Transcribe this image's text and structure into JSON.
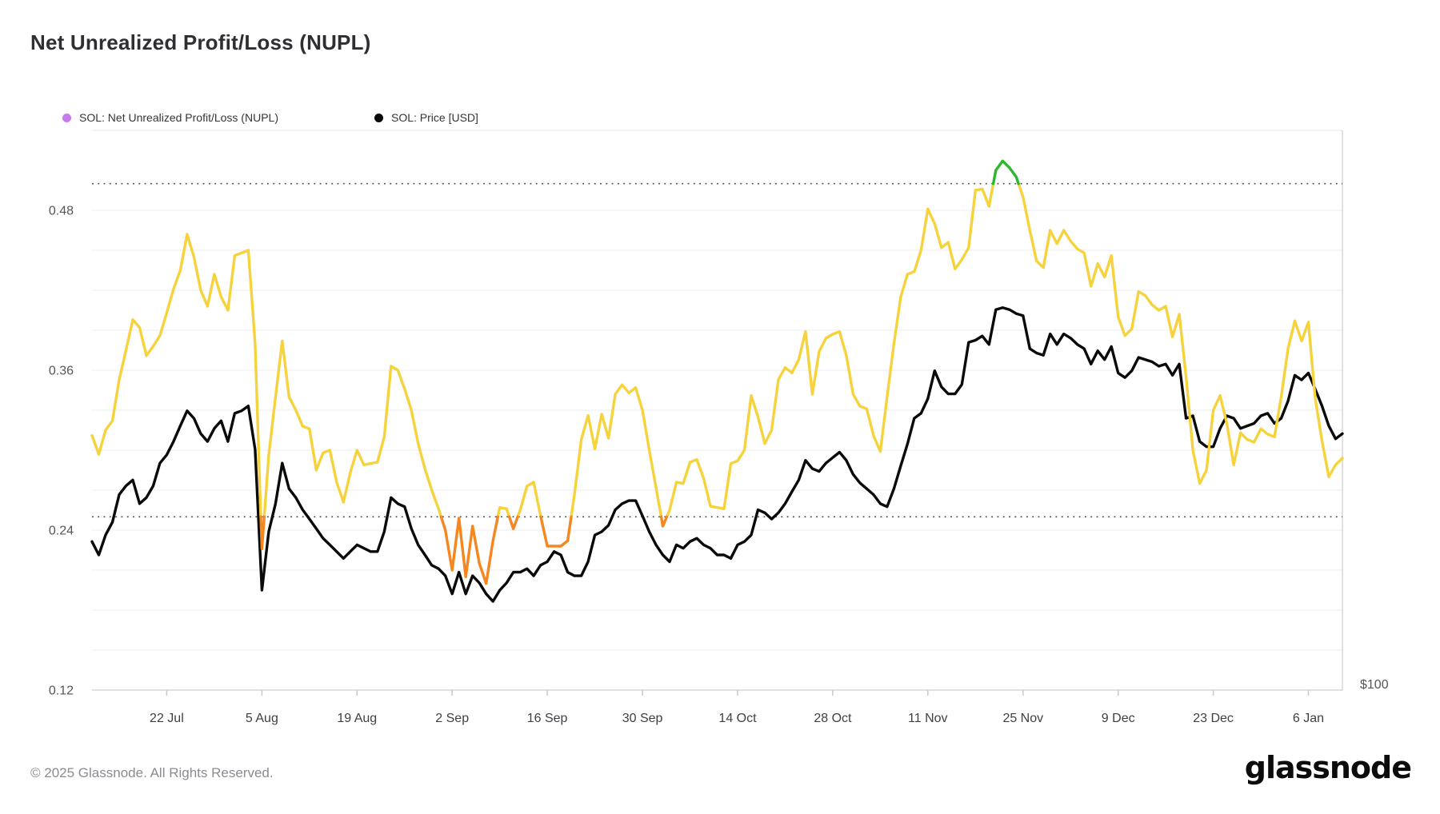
{
  "header": {
    "title": "Net Unrealized Profit/Loss (NUPL)"
  },
  "legend": {
    "items": [
      {
        "label": "SOL: Net Unrealized Profit/Loss (NUPL)",
        "dot_color": "#c57bee"
      },
      {
        "label": "SOL: Price [USD]",
        "dot_color": "#0a0a0a"
      }
    ]
  },
  "footer": {
    "copyright": "© 2025 Glassnode. All Rights Reserved.",
    "brand_logo_text": "glassnode"
  },
  "colors": {
    "nupl_yellow_band": "#f6d33c",
    "nupl_orange_band": "#f6861f",
    "nupl_green_band": "#2eb62e",
    "price_line": "#0a0a0a",
    "gridline": "#ededf0",
    "border": "#d6d6da",
    "top_border": "#e7e7ea",
    "dotted_threshold": "#4a4a4a",
    "axis_text": "#55565a",
    "x_axis_text": "#3f4045"
  },
  "chart_data": {
    "type": "line",
    "title": "Net Unrealized Profit/Loss (NUPL)",
    "x_interval": "daily",
    "x_range_start": "11 Jul 2024",
    "x_range_end": "11 Jan 2025",
    "x_tick_labels": [
      "22 Jul",
      "5 Aug",
      "19 Aug",
      "2 Sep",
      "16 Sep",
      "30 Sep",
      "14 Oct",
      "28 Oct",
      "11 Nov",
      "25 Nov",
      "9 Dec",
      "23 Dec",
      "6 Jan"
    ],
    "x_tick_indices": [
      11,
      25,
      39,
      53,
      67,
      81,
      95,
      109,
      123,
      137,
      151,
      165,
      179
    ],
    "y_left_axis": {
      "tick_labels": [
        "0.48",
        "0.36",
        "0.24",
        "0.12"
      ],
      "tick_values": [
        0.48,
        0.36,
        0.24,
        0.12
      ],
      "range": [
        0.12,
        0.54
      ],
      "minor_grid_step": 0.03
    },
    "y_right_axis": {
      "visible_label": "$100",
      "scale": "log",
      "label_value": 100
    },
    "threshold_dotted_levels": [
      0.5,
      0.25
    ],
    "color_zones": {
      "below_0.25": "orange",
      "0.25_to_0.5": "yellow",
      "above_0.5": "green"
    },
    "legend_position": "top-left",
    "grid": true,
    "series": [
      {
        "name": "SOL: Net Unrealized Profit/Loss (NUPL)",
        "axis": "left",
        "values": [
          0.311,
          0.297,
          0.315,
          0.322,
          0.353,
          0.375,
          0.398,
          0.392,
          0.371,
          0.378,
          0.386,
          0.403,
          0.421,
          0.435,
          0.462,
          0.445,
          0.42,
          0.408,
          0.432,
          0.415,
          0.405,
          0.446,
          0.448,
          0.45,
          0.38,
          0.226,
          0.296,
          0.34,
          0.382,
          0.34,
          0.33,
          0.318,
          0.316,
          0.285,
          0.298,
          0.3,
          0.276,
          0.261,
          0.283,
          0.3,
          0.289,
          0.29,
          0.291,
          0.31,
          0.363,
          0.36,
          0.346,
          0.33,
          0.305,
          0.286,
          0.27,
          0.256,
          0.24,
          0.21,
          0.249,
          0.205,
          0.243,
          0.215,
          0.2,
          0.232,
          0.257,
          0.256,
          0.241,
          0.255,
          0.273,
          0.276,
          0.251,
          0.228,
          0.228,
          0.228,
          0.232,
          0.267,
          0.308,
          0.326,
          0.301,
          0.327,
          0.309,
          0.342,
          0.349,
          0.343,
          0.347,
          0.33,
          0.3,
          0.272,
          0.243,
          0.255,
          0.276,
          0.275,
          0.291,
          0.293,
          0.279,
          0.258,
          0.257,
          0.256,
          0.29,
          0.292,
          0.3,
          0.341,
          0.325,
          0.305,
          0.315,
          0.353,
          0.362,
          0.358,
          0.368,
          0.389,
          0.342,
          0.374,
          0.384,
          0.387,
          0.389,
          0.371,
          0.342,
          0.333,
          0.331,
          0.311,
          0.299,
          0.34,
          0.38,
          0.415,
          0.432,
          0.434,
          0.45,
          0.481,
          0.47,
          0.452,
          0.456,
          0.436,
          0.443,
          0.452,
          0.495,
          0.496,
          0.483,
          0.51,
          0.517,
          0.512,
          0.505,
          0.49,
          0.465,
          0.442,
          0.437,
          0.465,
          0.455,
          0.465,
          0.457,
          0.451,
          0.448,
          0.423,
          0.44,
          0.43,
          0.446,
          0.4,
          0.386,
          0.391,
          0.419,
          0.416,
          0.409,
          0.405,
          0.408,
          0.385,
          0.402,
          0.355,
          0.3,
          0.275,
          0.285,
          0.33,
          0.341,
          0.32,
          0.289,
          0.313,
          0.308,
          0.306,
          0.316,
          0.312,
          0.31,
          0.34,
          0.376,
          0.397,
          0.382,
          0.396,
          0.339,
          0.307,
          0.28,
          0.289,
          0.294
        ]
      },
      {
        "name": "SOL: Price [USD]",
        "axis": "right",
        "values": [
          137,
          133,
          139,
          143,
          152,
          155,
          157,
          149,
          151,
          155,
          163,
          166,
          171,
          177,
          183,
          180,
          174,
          171,
          176,
          179,
          171,
          182,
          183,
          185,
          168,
          123,
          140,
          149,
          163,
          154,
          151,
          147,
          144,
          141,
          138,
          136,
          134,
          132,
          134,
          136,
          135,
          134,
          134,
          140,
          151,
          149,
          148,
          141,
          136,
          133,
          130,
          129,
          127,
          122,
          128,
          122,
          127,
          125,
          122,
          120,
          123,
          125,
          128,
          128,
          129,
          127,
          130,
          131,
          134,
          133,
          128,
          127,
          127,
          131,
          139,
          140,
          142,
          147,
          149,
          150,
          150,
          145,
          140,
          136,
          133,
          131,
          136,
          135,
          137,
          138,
          136,
          135,
          133,
          133,
          132,
          136,
          137,
          139,
          147,
          146,
          144,
          146,
          149,
          153,
          157,
          164,
          161,
          160,
          163,
          165,
          167,
          164,
          159,
          156,
          154,
          152,
          149,
          148,
          154,
          162,
          170,
          180,
          182,
          188,
          200,
          193,
          190,
          190,
          194,
          213,
          214,
          216,
          212,
          229,
          230,
          229,
          227,
          226,
          210,
          208,
          207,
          217,
          212,
          217,
          215,
          212,
          210,
          203,
          209,
          205,
          211,
          199,
          197,
          200,
          206,
          205,
          204,
          202,
          203,
          198,
          203,
          180,
          181,
          171,
          169,
          169,
          176,
          181,
          180,
          176,
          177,
          178,
          181,
          182,
          178,
          180,
          187,
          198,
          196,
          199,
          192,
          185,
          177,
          172,
          174
        ]
      }
    ]
  }
}
